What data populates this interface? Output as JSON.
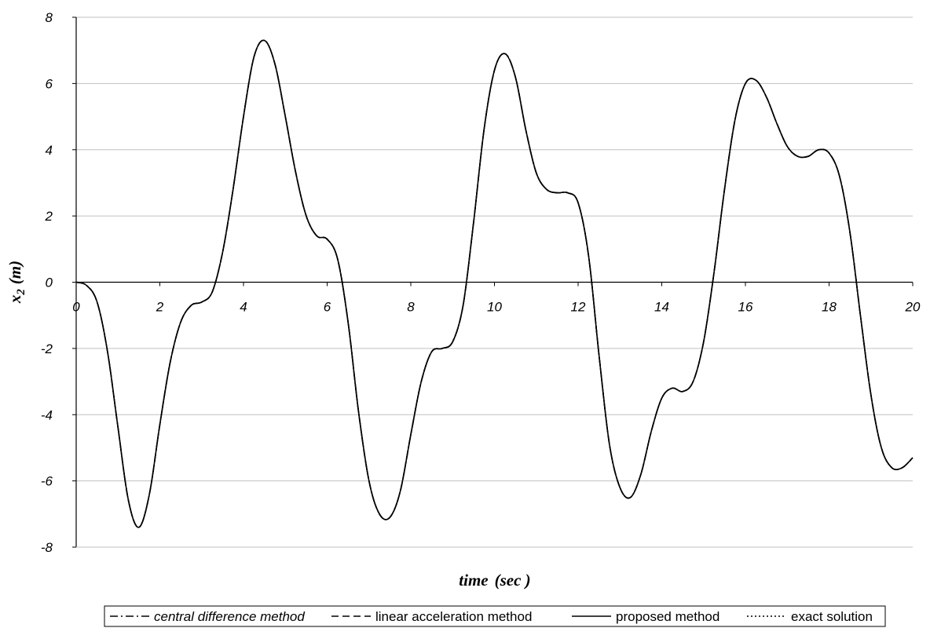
{
  "chart_data": {
    "type": "line",
    "title": "",
    "xlabel": "time",
    "xlabel_unit": "(sec )",
    "ylabel_main": "x",
    "ylabel_sub": "2",
    "ylabel_unit": "(m)",
    "xlim": [
      0,
      20
    ],
    "ylim": [
      -8,
      8
    ],
    "x_ticks": [
      0,
      2,
      4,
      6,
      8,
      10,
      12,
      14,
      16,
      18,
      20
    ],
    "y_ticks": [
      -8,
      -6,
      -4,
      -2,
      0,
      2,
      4,
      6,
      8
    ],
    "grid": "horizontal",
    "legend_position": "bottom",
    "x": [
      0,
      0.25,
      0.5,
      0.75,
      1.0,
      1.25,
      1.5,
      1.75,
      2.0,
      2.25,
      2.5,
      2.75,
      3.0,
      3.25,
      3.5,
      3.75,
      4.0,
      4.25,
      4.5,
      4.75,
      5.0,
      5.25,
      5.5,
      5.75,
      6.0,
      6.25,
      6.5,
      6.75,
      7.0,
      7.25,
      7.5,
      7.75,
      8.0,
      8.25,
      8.5,
      8.75,
      9.0,
      9.25,
      9.5,
      9.75,
      10.0,
      10.25,
      10.5,
      10.75,
      11.0,
      11.25,
      11.5,
      11.75,
      12.0,
      12.25,
      12.5,
      12.75,
      13.0,
      13.25,
      13.5,
      13.75,
      14.0,
      14.25,
      14.5,
      14.75,
      15.0,
      15.25,
      15.5,
      15.75,
      16.0,
      16.25,
      16.5,
      16.75,
      17.0,
      17.25,
      17.5,
      17.75,
      18.0,
      18.25,
      18.5,
      18.75,
      19.0,
      19.25,
      19.5,
      19.75,
      20.0
    ],
    "series": [
      {
        "name": "central difference method",
        "style": "dash-dot",
        "italic_label": true,
        "values": [
          0,
          -0.1,
          -0.6,
          -2.1,
          -4.4,
          -6.6,
          -7.4,
          -6.4,
          -4.3,
          -2.4,
          -1.2,
          -0.7,
          -0.6,
          -0.3,
          0.9,
          2.8,
          5.0,
          6.8,
          7.3,
          6.6,
          5.0,
          3.3,
          2.0,
          1.4,
          1.3,
          0.7,
          -1.2,
          -3.9,
          -6.0,
          -7.0,
          -7.1,
          -6.3,
          -4.6,
          -3.0,
          -2.1,
          -2.0,
          -1.8,
          -0.7,
          1.8,
          4.6,
          6.4,
          6.9,
          6.2,
          4.6,
          3.3,
          2.8,
          2.7,
          2.7,
          2.4,
          0.8,
          -2.2,
          -4.9,
          -6.2,
          -6.5,
          -5.8,
          -4.5,
          -3.5,
          -3.2,
          -3.3,
          -3.0,
          -1.8,
          0.3,
          2.8,
          4.9,
          6.0,
          6.1,
          5.6,
          4.8,
          4.1,
          3.8,
          3.8,
          4.0,
          3.9,
          3.2,
          1.5,
          -1.0,
          -3.4,
          -5.0,
          -5.6,
          -5.6,
          -5.3
        ]
      },
      {
        "name": "linear acceleration method",
        "style": "dashed",
        "italic_label": false,
        "values": [
          0,
          -0.1,
          -0.6,
          -2.1,
          -4.4,
          -6.6,
          -7.4,
          -6.4,
          -4.3,
          -2.4,
          -1.2,
          -0.7,
          -0.6,
          -0.3,
          0.9,
          2.8,
          5.0,
          6.8,
          7.3,
          6.6,
          5.0,
          3.3,
          2.0,
          1.4,
          1.3,
          0.7,
          -1.2,
          -3.9,
          -6.0,
          -7.0,
          -7.1,
          -6.3,
          -4.6,
          -3.0,
          -2.1,
          -2.0,
          -1.8,
          -0.7,
          1.8,
          4.6,
          6.4,
          6.9,
          6.2,
          4.6,
          3.3,
          2.8,
          2.7,
          2.7,
          2.4,
          0.8,
          -2.2,
          -4.9,
          -6.2,
          -6.5,
          -5.8,
          -4.5,
          -3.5,
          -3.2,
          -3.3,
          -3.0,
          -1.8,
          0.3,
          2.8,
          4.9,
          6.0,
          6.1,
          5.6,
          4.8,
          4.1,
          3.8,
          3.8,
          4.0,
          3.9,
          3.2,
          1.5,
          -1.0,
          -3.4,
          -5.0,
          -5.6,
          -5.6,
          -5.3
        ]
      },
      {
        "name": "proposed method",
        "style": "solid",
        "italic_label": false,
        "values": [
          0,
          -0.1,
          -0.6,
          -2.1,
          -4.4,
          -6.6,
          -7.4,
          -6.4,
          -4.3,
          -2.4,
          -1.2,
          -0.7,
          -0.6,
          -0.3,
          0.9,
          2.8,
          5.0,
          6.8,
          7.3,
          6.6,
          5.0,
          3.3,
          2.0,
          1.4,
          1.3,
          0.7,
          -1.2,
          -3.9,
          -6.0,
          -7.0,
          -7.1,
          -6.3,
          -4.6,
          -3.0,
          -2.1,
          -2.0,
          -1.8,
          -0.7,
          1.8,
          4.6,
          6.4,
          6.9,
          6.2,
          4.6,
          3.3,
          2.8,
          2.7,
          2.7,
          2.4,
          0.8,
          -2.2,
          -4.9,
          -6.2,
          -6.5,
          -5.8,
          -4.5,
          -3.5,
          -3.2,
          -3.3,
          -3.0,
          -1.8,
          0.3,
          2.8,
          4.9,
          6.0,
          6.1,
          5.6,
          4.8,
          4.1,
          3.8,
          3.8,
          4.0,
          3.9,
          3.2,
          1.5,
          -1.0,
          -3.4,
          -5.0,
          -5.6,
          -5.6,
          -5.3
        ]
      },
      {
        "name": "exact solution",
        "style": "dotted",
        "italic_label": false,
        "values": [
          0,
          -0.1,
          -0.6,
          -2.1,
          -4.4,
          -6.6,
          -7.4,
          -6.4,
          -4.3,
          -2.4,
          -1.2,
          -0.7,
          -0.6,
          -0.3,
          0.9,
          2.8,
          5.0,
          6.8,
          7.3,
          6.6,
          5.0,
          3.3,
          2.0,
          1.4,
          1.3,
          0.7,
          -1.2,
          -3.9,
          -6.0,
          -7.0,
          -7.1,
          -6.3,
          -4.6,
          -3.0,
          -2.1,
          -2.0,
          -1.8,
          -0.7,
          1.8,
          4.6,
          6.4,
          6.9,
          6.2,
          4.6,
          3.3,
          2.8,
          2.7,
          2.7,
          2.4,
          0.8,
          -2.2,
          -4.9,
          -6.2,
          -6.5,
          -5.8,
          -4.5,
          -3.5,
          -3.2,
          -3.3,
          -3.0,
          -1.8,
          0.3,
          2.8,
          4.9,
          6.0,
          6.1,
          5.6,
          4.8,
          4.1,
          3.8,
          3.8,
          4.0,
          3.9,
          3.2,
          1.5,
          -1.0,
          -3.4,
          -5.0,
          -5.6,
          -5.6,
          -5.3
        ]
      }
    ],
    "colors": {
      "line": "#000000",
      "grid": "#c0c0c0",
      "axis": "#000000",
      "background": "#ffffff"
    }
  }
}
